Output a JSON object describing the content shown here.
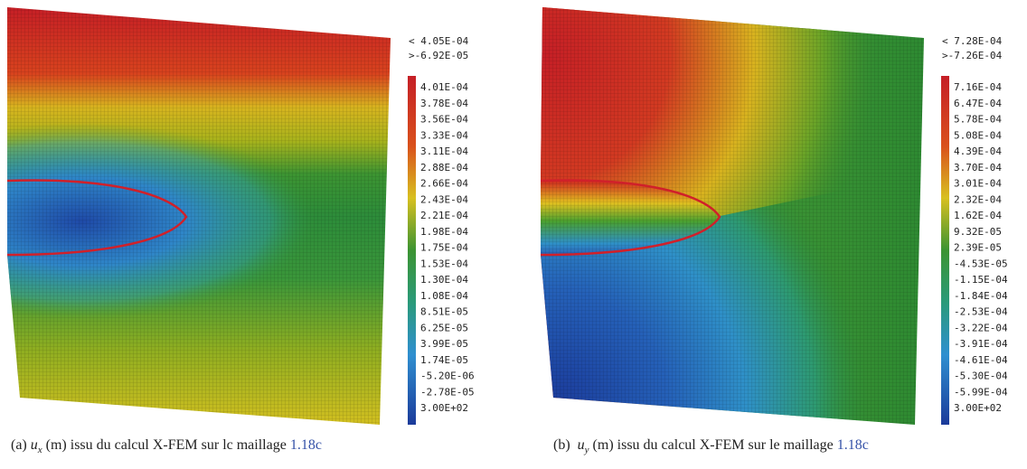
{
  "panels": [
    {
      "header": [
        "< 4.05E-04",
        ">-6.92E-05"
      ],
      "scale": [
        "4.01E-04",
        "3.78E-04",
        "3.56E-04",
        "3.33E-04",
        "3.11E-04",
        "2.88E-04",
        "2.66E-04",
        "2.43E-04",
        "2.21E-04",
        "1.98E-04",
        "1.75E-04",
        "1.53E-04",
        "1.30E-04",
        "1.08E-04",
        "8.51E-05",
        "6.25E-05",
        "3.99E-05",
        "1.74E-05",
        "-5.20E-06",
        "-2.78E-05",
        "3.00E+02"
      ],
      "caption": {
        "label": "(a)",
        "var": "u",
        "sub": "x",
        "text": "(m) issu du calcul X-FEM sur lc maillage",
        "ref": "1.18c"
      }
    },
    {
      "header": [
        "< 7.28E-04",
        ">-7.26E-04"
      ],
      "scale": [
        "7.16E-04",
        "6.47E-04",
        "5.78E-04",
        "5.08E-04",
        "4.39E-04",
        "3.70E-04",
        "3.01E-04",
        "2.32E-04",
        "1.62E-04",
        "9.32E-05",
        "2.39E-05",
        "-4.53E-05",
        "-1.15E-04",
        "-1.84E-04",
        "-2.53E-04",
        "-3.22E-04",
        "-3.91E-04",
        "-4.61E-04",
        "-5.30E-04",
        "-5.99E-04",
        "3.00E+02"
      ],
      "caption": {
        "label": "(b)",
        "var": "u",
        "sub": "y",
        "text": "(m) issu du calcul X-FEM sur le maillage",
        "ref": "1.18c"
      }
    }
  ]
}
